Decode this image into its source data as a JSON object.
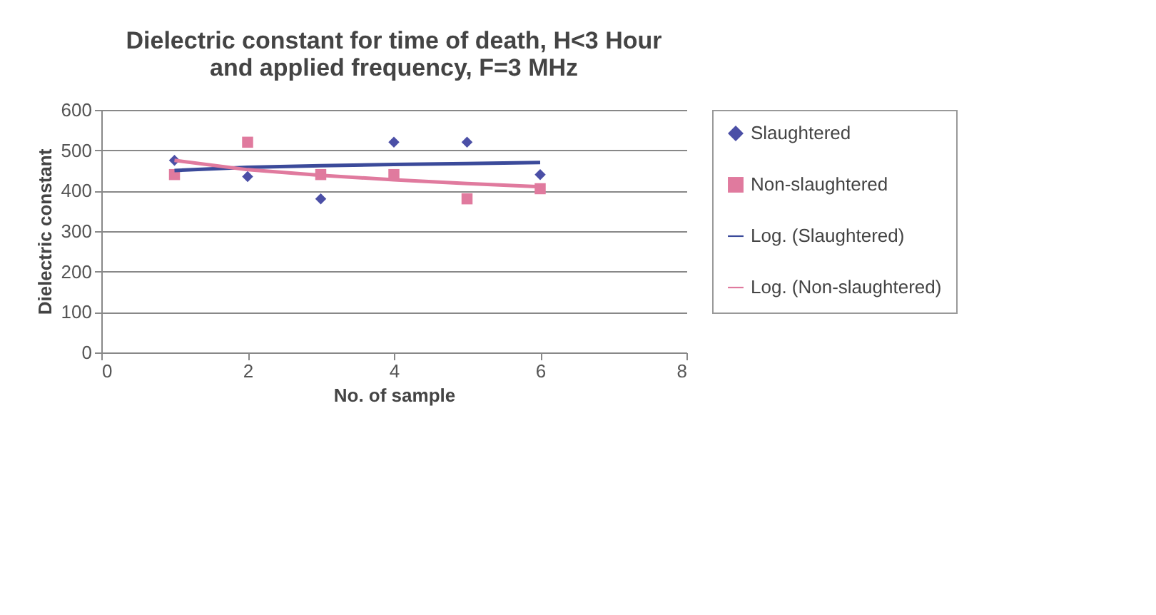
{
  "chart_data": {
    "type": "scatter",
    "title": "Dielectric constant for time of death, H<3 Hour and applied frequency, F=3 MHz",
    "xlabel": "No. of sample",
    "ylabel": "Dielectric constant",
    "xlim": [
      0,
      8
    ],
    "xticks": [
      0,
      2,
      4,
      6,
      8
    ],
    "ylim": [
      0,
      600
    ],
    "yticks": [
      0,
      100,
      200,
      300,
      400,
      500,
      600
    ],
    "grid": "y",
    "legend": "right",
    "series": [
      {
        "name": "Slaughtered",
        "marker": "diamond",
        "color": "#4b4fa6",
        "x": [
          1,
          2,
          3,
          4,
          5,
          6
        ],
        "values": [
          475,
          435,
          380,
          520,
          520,
          440
        ]
      },
      {
        "name": "Non-slaughtered",
        "marker": "square",
        "color": "#e07a9e",
        "x": [
          1,
          2,
          3,
          4,
          5,
          6
        ],
        "values": [
          440,
          520,
          440,
          440,
          380,
          405
        ]
      },
      {
        "name": "Log. (Slaughtered)",
        "type": "line",
        "color": "#3b4a9a",
        "x": [
          1,
          2,
          3,
          4,
          5,
          6
        ],
        "values": [
          450,
          458,
          462,
          465,
          467,
          470
        ]
      },
      {
        "name": "Log. (Non-slaughtered)",
        "type": "line",
        "color": "#e07a9e",
        "x": [
          1,
          2,
          3,
          4,
          5,
          6
        ],
        "values": [
          475,
          452,
          438,
          427,
          418,
          410
        ]
      }
    ]
  }
}
